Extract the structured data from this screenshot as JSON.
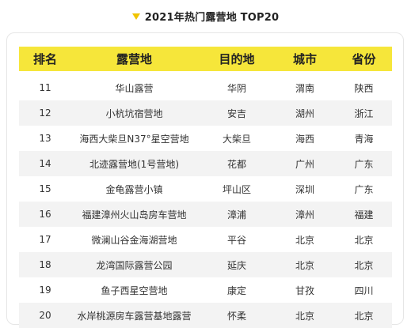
{
  "title": "2021年热门露营地 TOP20",
  "headers": [
    "排名",
    "露营地",
    "目的地",
    "城市",
    "省份"
  ],
  "rows": [
    {
      "rank": "11",
      "camp": "华山露营",
      "dest": "华阴",
      "city": "渭南",
      "prov": "陕西"
    },
    {
      "rank": "12",
      "camp": "小杭坑宿营地",
      "dest": "安吉",
      "city": "湖州",
      "prov": "浙江"
    },
    {
      "rank": "13",
      "camp": "海西大柴旦N37°星空营地",
      "dest": "大柴旦",
      "city": "海西",
      "prov": "青海"
    },
    {
      "rank": "14",
      "camp": "北迹露营地(1号营地)",
      "dest": "花都",
      "city": "广州",
      "prov": "广东"
    },
    {
      "rank": "15",
      "camp": "金龟露营小镇",
      "dest": "坪山区",
      "city": "深圳",
      "prov": "广东"
    },
    {
      "rank": "16",
      "camp": "福建漳州火山岛房车营地",
      "dest": "漳浦",
      "city": "漳州",
      "prov": "福建"
    },
    {
      "rank": "17",
      "camp": "微澜山谷金海湖营地",
      "dest": "平谷",
      "city": "北京",
      "prov": "北京"
    },
    {
      "rank": "18",
      "camp": "龙湾国际露营公园",
      "dest": "延庆",
      "city": "北京",
      "prov": "北京"
    },
    {
      "rank": "19",
      "camp": "鱼子西星空营地",
      "dest": "康定",
      "city": "甘孜",
      "prov": "四川"
    },
    {
      "rank": "20",
      "camp": "水岸桃源房车露营基地露营",
      "dest": "怀柔",
      "city": "北京",
      "prov": "北京"
    }
  ]
}
